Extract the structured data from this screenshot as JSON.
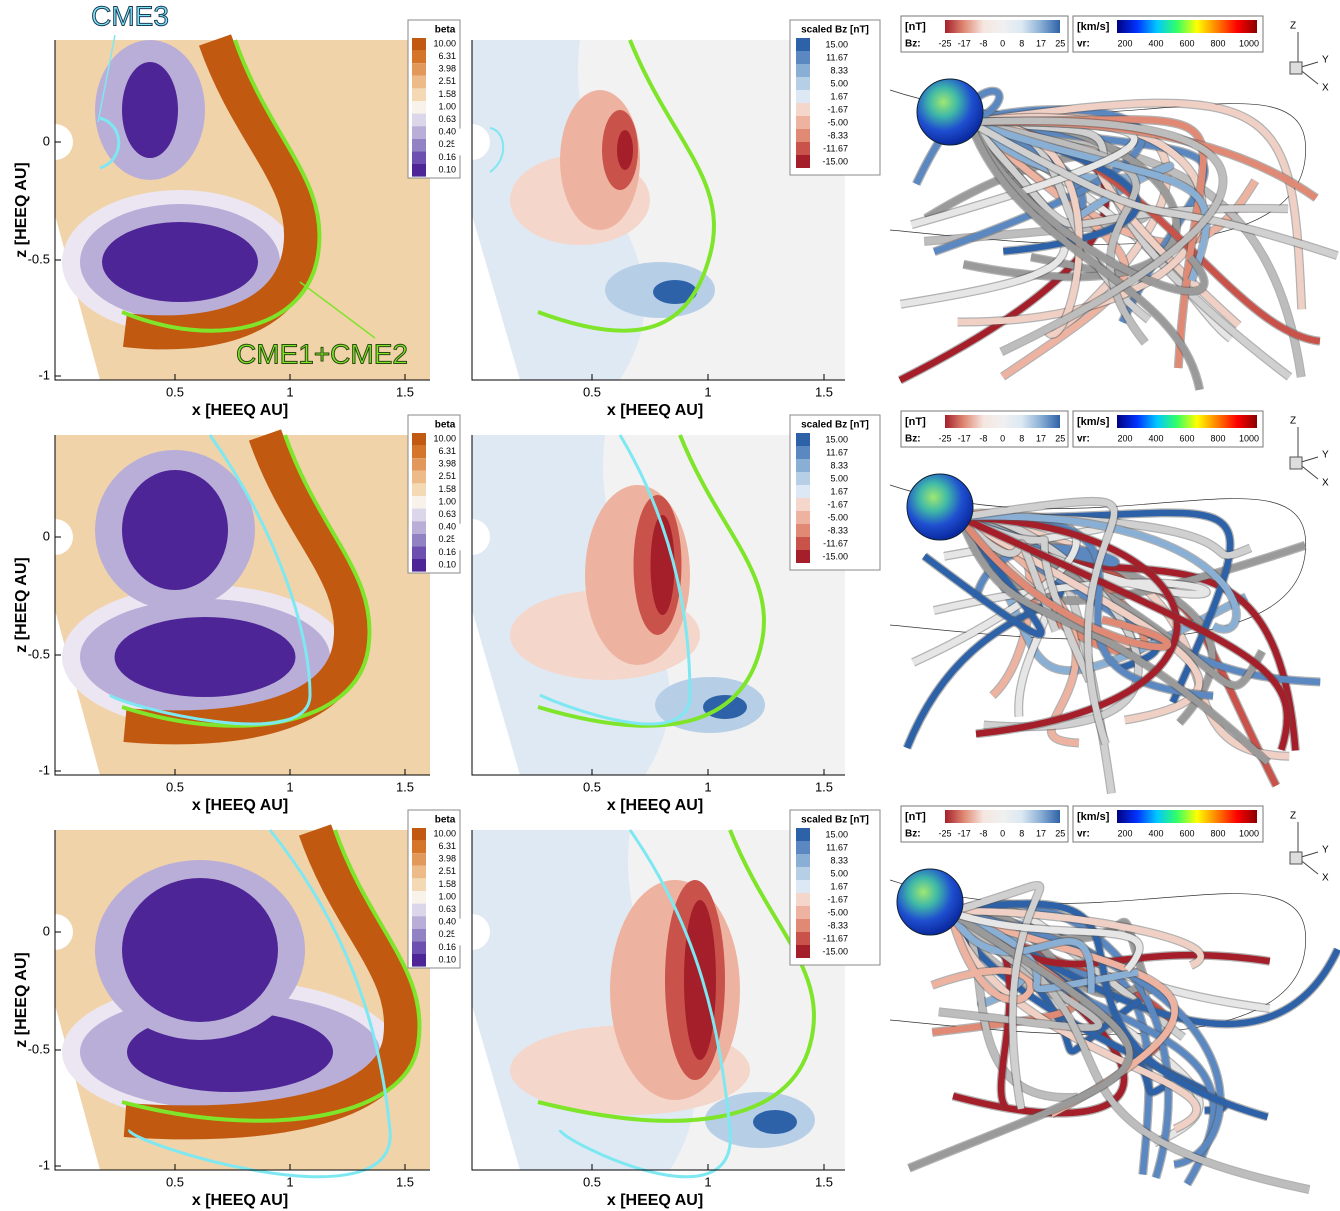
{
  "annotations": {
    "cme3": "CME3",
    "cme12": "CME1+CME2"
  },
  "axis": {
    "x_label": "x [HEEQ AU]",
    "z_label": "z [HEEQ AU]",
    "x_ticks": [
      "0.5",
      "1",
      "1.5"
    ],
    "z_ticks": [
      "0",
      "-0.5",
      "-1"
    ]
  },
  "beta_legend": {
    "title": "beta",
    "levels": [
      "10.00",
      "6.31",
      "3.98",
      "2.51",
      "1.58",
      "1.00",
      "0.63",
      "0.40",
      "0.25",
      "0.16",
      "0.10"
    ]
  },
  "bz_legend": {
    "title": "scaled Bz [nT]",
    "levels": [
      "15.00",
      "11.67",
      "8.33",
      "5.00",
      "1.67",
      "-1.67",
      "-5.00",
      "-8.33",
      "-11.67",
      "-15.00"
    ]
  },
  "bz_colorbar": {
    "unit": "[nT]",
    "label": "Bz:",
    "ticks": [
      "-25",
      "-17",
      "-8",
      "0",
      "8",
      "17",
      "25"
    ]
  },
  "vr_colorbar": {
    "unit": "[km/s]",
    "label": "vr:",
    "ticks": [
      "200",
      "400",
      "600",
      "800",
      "1000"
    ]
  },
  "triad": {
    "z": "Z",
    "y": "Y",
    "x": "X"
  }
}
